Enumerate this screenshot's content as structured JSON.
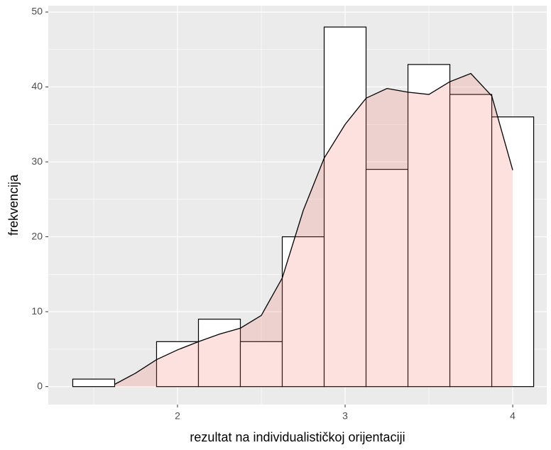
{
  "chart_data": {
    "type": "histogram",
    "x_label": "rezultat na individualističkoj orijentaciji",
    "y_label": "frekvencija",
    "bins": [
      1.375,
      1.625,
      1.875,
      2.125,
      2.375,
      2.625,
      2.875,
      3.125,
      3.375,
      3.625,
      3.875,
      4.125
    ],
    "values": [
      1,
      0,
      6,
      9,
      6,
      20,
      48,
      29,
      43,
      39,
      36
    ],
    "bar_fill": "#ffffff",
    "bar_stroke": "#000000",
    "density": {
      "color": "#f8766d",
      "opacity": 0.22,
      "x": [
        1.625,
        1.75,
        1.875,
        2.0,
        2.125,
        2.25,
        2.375,
        2.5,
        2.625,
        2.75,
        2.875,
        3.0,
        3.125,
        3.25,
        3.375,
        3.5,
        3.625,
        3.75,
        3.875,
        4.0
      ],
      "values": [
        0.3,
        1.8,
        3.6,
        4.9,
        6.0,
        7.0,
        7.8,
        9.5,
        14.5,
        23.5,
        30.5,
        35,
        38.5,
        39.8,
        39.3,
        39,
        40.7,
        41.8,
        38.8,
        28.9
      ]
    },
    "xlim": [
      1.229,
      4.203
    ],
    "ylim": [
      -2.4,
      50.85
    ],
    "xticks": [
      2,
      3,
      4
    ],
    "yticks": [
      0,
      10,
      20,
      30,
      40,
      50
    ],
    "xminor": [
      1.5,
      2.5,
      3.5
    ],
    "yminor": [
      5,
      15,
      25,
      35,
      45
    ],
    "grid": true
  }
}
